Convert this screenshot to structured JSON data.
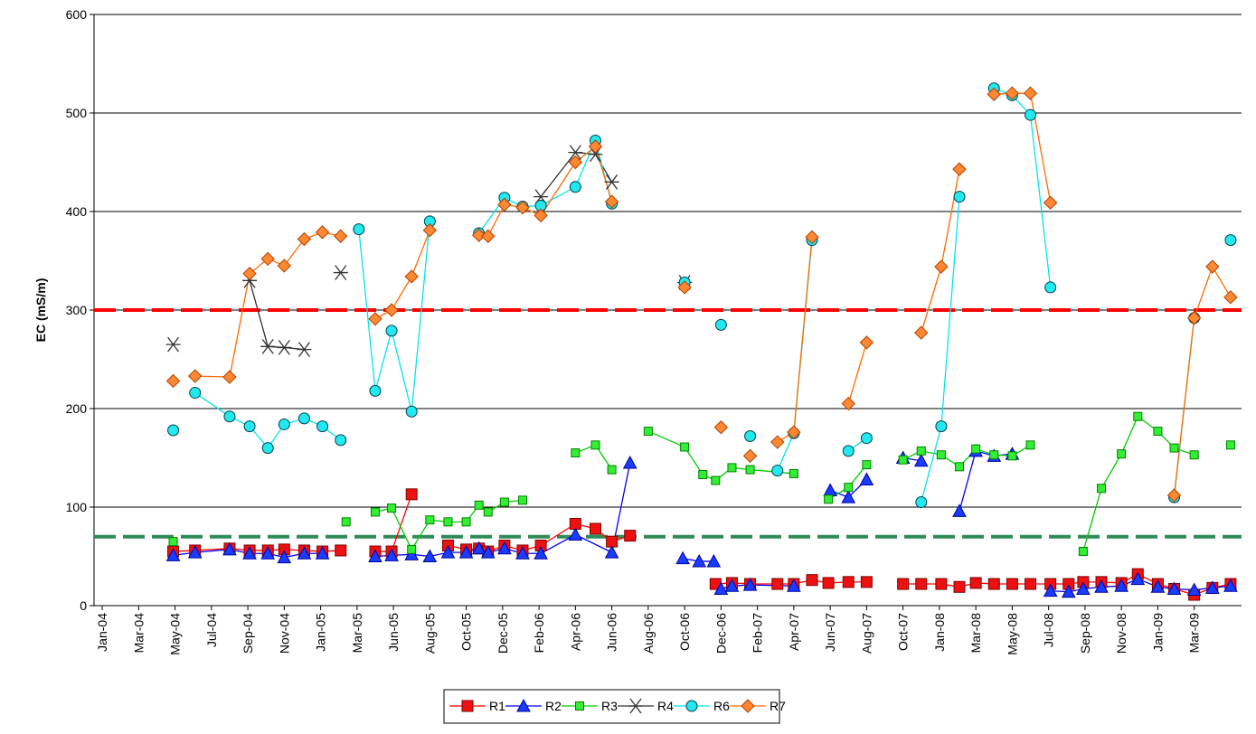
{
  "chart_data": {
    "type": "line",
    "y_label": "EC (mS/m)",
    "xlim": [
      -0.45,
      62.6
    ],
    "ylim": [
      0,
      600
    ],
    "yticks": [
      0,
      100,
      200,
      300,
      400,
      500,
      600
    ],
    "xticks": [
      {
        "value": 0,
        "label": "Jan-04"
      },
      {
        "value": 2,
        "label": "Mar-04"
      },
      {
        "value": 4,
        "label": "May-04"
      },
      {
        "value": 6,
        "label": "Jul-04"
      },
      {
        "value": 8,
        "label": "Sep-04"
      },
      {
        "value": 10,
        "label": "Nov-04"
      },
      {
        "value": 12,
        "label": "Jan-05"
      },
      {
        "value": 14,
        "label": "Mar-05"
      },
      {
        "value": 16,
        "label": "Jun-05"
      },
      {
        "value": 18,
        "label": "Aug-05"
      },
      {
        "value": 20,
        "label": "Oct-05"
      },
      {
        "value": 22,
        "label": "Dec-05"
      },
      {
        "value": 24,
        "label": "Feb-06"
      },
      {
        "value": 26,
        "label": "Apr-06"
      },
      {
        "value": 28,
        "label": "Jun-06"
      },
      {
        "value": 30,
        "label": "Aug-06"
      },
      {
        "value": 32,
        "label": "Oct-06"
      },
      {
        "value": 34,
        "label": "Dec-06"
      },
      {
        "value": 36,
        "label": "Feb-07"
      },
      {
        "value": 38,
        "label": "Apr-07"
      },
      {
        "value": 40,
        "label": "Jun-07"
      },
      {
        "value": 42,
        "label": "Aug-07"
      },
      {
        "value": 44,
        "label": "Oct-07"
      },
      {
        "value": 46,
        "label": "Jan-08"
      },
      {
        "value": 48,
        "label": "Mar-08"
      },
      {
        "value": 50,
        "label": "May-08"
      },
      {
        "value": 52,
        "label": "Jul-08"
      },
      {
        "value": 54,
        "label": "Sep-08"
      },
      {
        "value": 56,
        "label": "Nov-08"
      },
      {
        "value": 58,
        "label": "Jan-09"
      },
      {
        "value": 60,
        "label": "Mar-09"
      }
    ],
    "grid": true,
    "legend": "bottom",
    "reference_lines": [
      {
        "value": 300,
        "color": "#ff0000"
      },
      {
        "value": 70,
        "color": "#2e8b57"
      }
    ],
    "series": [
      {
        "name": "R1",
        "color": "#ff0000",
        "marker": "square",
        "x": [
          3.9,
          5.1,
          7.0,
          8.1,
          9.1,
          10.0,
          11.1,
          12.1,
          13.1,
          null,
          15.0,
          15.9,
          17.0,
          null,
          19.0,
          20.0,
          20.7,
          21.2,
          22.1,
          23.1,
          24.1,
          26.0,
          27.1,
          28.0,
          29.0,
          null,
          33.7,
          34.6,
          35.6,
          37.1,
          38.0,
          39.0,
          39.9,
          41.0,
          42.0,
          null,
          44.0,
          45.0,
          46.1,
          47.1,
          48.0,
          49.0,
          50.0,
          51.0,
          52.1,
          53.1,
          53.9,
          54.9,
          56.0,
          56.9,
          58.0,
          58.9,
          60.0,
          61.0,
          62.0
        ],
        "values": [
          55,
          56,
          58,
          56,
          56,
          57,
          56,
          55,
          56,
          null,
          55,
          55,
          113,
          null,
          61,
          57,
          58,
          55,
          61,
          56,
          61,
          83,
          78,
          65,
          71,
          null,
          22,
          23,
          22,
          22,
          22,
          26,
          23,
          24,
          24,
          null,
          22,
          22,
          22,
          19,
          23,
          22,
          22,
          22,
          22,
          22,
          24,
          24,
          23,
          32,
          22,
          17,
          11,
          18,
          22
        ]
      },
      {
        "name": "R2",
        "color": "#0000ff",
        "marker": "triangle",
        "x": [
          3.9,
          5.1,
          7.0,
          8.1,
          9.1,
          10.0,
          11.1,
          12.1,
          null,
          15.0,
          15.9,
          17.0,
          18.0,
          19.0,
          20.0,
          20.7,
          21.2,
          22.1,
          23.1,
          24.1,
          26.0,
          28.0,
          29.0,
          null,
          31.9,
          32.8,
          33.6,
          null,
          34.0,
          34.6,
          35.6,
          38.0,
          null,
          40.0,
          41.0,
          42.0,
          null,
          44.0,
          45.0,
          null,
          47.1,
          48.0,
          49.0,
          50.0,
          null,
          52.1,
          53.1,
          53.9,
          54.9,
          56.0,
          56.9,
          58.0,
          58.9,
          60.0,
          61.0,
          62.0
        ],
        "values": [
          51,
          54,
          57,
          53,
          53,
          49,
          53,
          53,
          null,
          50,
          51,
          52,
          50,
          54,
          54,
          58,
          54,
          58,
          53,
          53,
          72,
          54,
          145,
          null,
          48,
          45,
          45,
          null,
          17,
          20,
          21,
          20,
          null,
          117,
          110,
          128,
          null,
          150,
          147,
          null,
          96,
          157,
          152,
          154,
          null,
          15,
          14,
          17,
          19,
          20,
          27,
          19,
          17,
          16,
          18,
          20
        ]
      },
      {
        "name": "R3",
        "color": "#00cc00",
        "marker": "smallsquare",
        "x": [
          3.9,
          null,
          13.4,
          null,
          15.0,
          15.9,
          17.0,
          18.0,
          19.0,
          20.0,
          20.7,
          21.2,
          22.1,
          23.1,
          null,
          26.0,
          27.1,
          28.0,
          null,
          30.0,
          32.0,
          33.0,
          33.7,
          34.6,
          35.6,
          38.0,
          null,
          39.9,
          41.0,
          42.0,
          null,
          44.0,
          45.0,
          46.1,
          47.1,
          48.0,
          49.0,
          50.0,
          51.0,
          null,
          53.9,
          54.9,
          56.0,
          56.9,
          58.0,
          58.9,
          60.0,
          null,
          62.0
        ],
        "values": [
          65,
          null,
          85,
          null,
          95,
          99,
          57,
          87,
          85,
          85,
          102,
          95,
          105,
          107,
          null,
          155,
          163,
          138,
          null,
          177,
          161,
          133,
          127,
          140,
          138,
          134,
          null,
          108,
          120,
          143,
          null,
          148,
          157,
          153,
          141,
          159,
          153,
          152,
          163,
          null,
          55,
          119,
          154,
          192,
          177,
          160,
          153,
          null,
          163
        ]
      },
      {
        "name": "R4",
        "color": "#333333",
        "marker": "asterisk",
        "x": [
          3.9,
          null,
          8.1,
          9.1,
          10.0,
          11.1,
          null,
          13.1,
          null,
          24.1,
          26.0,
          27.1,
          28.0,
          null,
          32.0
        ],
        "values": [
          265,
          null,
          330,
          263,
          262,
          260,
          null,
          338,
          null,
          415,
          460,
          458,
          430,
          null,
          328
        ]
      },
      {
        "name": "R6",
        "color": "#00e5ee",
        "marker": "circle",
        "x": [
          3.9,
          null,
          5.1,
          7.0,
          8.1,
          9.1,
          10.0,
          11.1,
          12.1,
          13.1,
          null,
          14.1,
          15.0,
          15.9,
          17.0,
          18.0,
          null,
          20.7,
          22.1,
          23.1,
          24.1,
          26.0,
          27.1,
          28.0,
          null,
          32.0,
          null,
          34.0,
          null,
          35.6,
          null,
          37.1,
          38.0,
          39.0,
          null,
          41.0,
          42.0,
          null,
          45.0,
          46.1,
          47.1,
          null,
          49.0,
          50.0,
          51.0,
          52.1,
          null,
          58.9,
          60.0,
          null,
          62.0
        ],
        "values": [
          178,
          null,
          216,
          192,
          182,
          160,
          184,
          190,
          182,
          168,
          null,
          382,
          218,
          279,
          197,
          390,
          null,
          378,
          414,
          405,
          406,
          425,
          472,
          408,
          null,
          328,
          null,
          285,
          null,
          172,
          null,
          137,
          175,
          371,
          null,
          157,
          170,
          null,
          105,
          182,
          415,
          null,
          525,
          518,
          498,
          323,
          null,
          110,
          292,
          null,
          371
        ]
      },
      {
        "name": "R7",
        "color": "#ff6a00",
        "marker": "diamond",
        "x": [
          3.9,
          null,
          5.1,
          7.0,
          8.1,
          9.1,
          10.0,
          11.1,
          12.1,
          13.1,
          null,
          15.0,
          15.9,
          17.0,
          18.0,
          null,
          20.7,
          21.2,
          22.1,
          23.1,
          24.1,
          26.0,
          27.1,
          28.0,
          null,
          32.0,
          null,
          34.0,
          null,
          35.6,
          null,
          37.1,
          38.0,
          39.0,
          null,
          41.0,
          42.0,
          null,
          45.0,
          46.1,
          47.1,
          null,
          49.0,
          50.0,
          51.0,
          52.1,
          null,
          58.9,
          60.0,
          61.0,
          62.0
        ],
        "values": [
          228,
          null,
          233,
          232,
          337,
          352,
          345,
          372,
          379,
          375,
          null,
          291,
          300,
          334,
          381,
          null,
          376,
          375,
          407,
          404,
          396,
          450,
          466,
          410,
          null,
          323,
          null,
          181,
          null,
          152,
          null,
          166,
          176,
          374,
          null,
          205,
          267,
          null,
          277,
          344,
          443,
          null,
          519,
          520,
          520,
          409,
          null,
          112,
          292,
          344,
          313
        ]
      }
    ]
  }
}
